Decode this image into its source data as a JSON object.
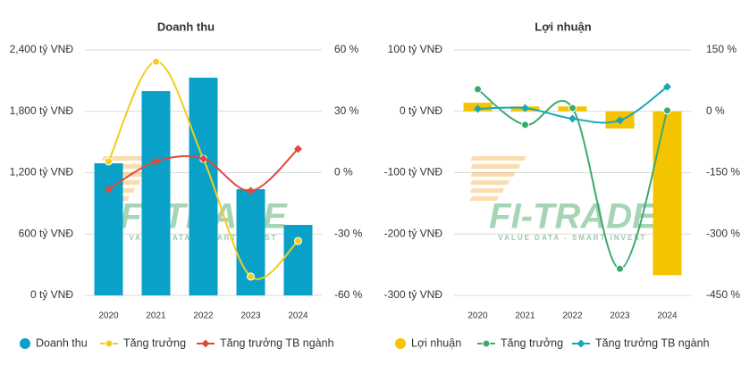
{
  "chart_data": [
    {
      "type": "combo",
      "title": "Doanh thu",
      "watermark": "FI-TRADE",
      "watermark_tagline": "VALUE DATA - SMART INVEST",
      "categories": [
        "2020",
        "2021",
        "2022",
        "2023",
        "2024"
      ],
      "ylim": [
        0,
        2400
      ],
      "yticks": [
        {
          "value": 0,
          "label": "0 tỷ VNĐ"
        },
        {
          "value": 600,
          "label": "600 tỷ VNĐ"
        },
        {
          "value": 1200,
          "label": "1,200 tỷ VNĐ"
        },
        {
          "value": 1800,
          "label": "1,800 tỷ VNĐ"
        },
        {
          "value": 2400,
          "label": "2,400 tỷ VNĐ"
        }
      ],
      "y2lim": [
        -60,
        60
      ],
      "y2ticks": [
        {
          "value": -60,
          "label": "-60 %"
        },
        {
          "value": -30,
          "label": "-30 %"
        },
        {
          "value": 0,
          "label": "0 %"
        },
        {
          "value": 30,
          "label": "30 %"
        },
        {
          "value": 60,
          "label": "60 %"
        }
      ],
      "grid": true,
      "series": [
        {
          "name": "Doanh thu",
          "type": "bar",
          "color": "#0aa1c9",
          "values": [
            1292,
            1998,
            2129,
            1039,
            689
          ]
        },
        {
          "name": "Tăng trưởng",
          "type": "line",
          "marker": "circle",
          "axis": "y2",
          "color": "#f3cc1c",
          "values": [
            5.5,
            54.3,
            6.8,
            -50.8,
            -33.4
          ]
        },
        {
          "name": "Tăng trưởng TB ngành",
          "type": "line",
          "marker": "diamond",
          "axis": "y2",
          "color": "#e04a3a",
          "values": [
            -8.1,
            5.5,
            6.8,
            -8.9,
            11.6
          ]
        }
      ]
    },
    {
      "type": "combo",
      "title": "Lợi nhuận",
      "watermark": "FI-TRADE",
      "watermark_tagline": "VALUE DATA - SMART INVEST",
      "categories": [
        "2020",
        "2021",
        "2022",
        "2023",
        "2024"
      ],
      "ylim": [
        -300,
        100
      ],
      "yticks": [
        {
          "value": -300,
          "label": "-300 tỷ VNĐ"
        },
        {
          "value": -200,
          "label": "-200 tỷ VNĐ"
        },
        {
          "value": -100,
          "label": "-100 tỷ VNĐ"
        },
        {
          "value": 0,
          "label": "0 tỷ VNĐ"
        },
        {
          "value": 100,
          "label": "100 tỷ VNĐ"
        }
      ],
      "y2lim": [
        -450,
        150
      ],
      "y2ticks": [
        {
          "value": -450,
          "label": "-450 %"
        },
        {
          "value": -300,
          "label": "-300 %"
        },
        {
          "value": -150,
          "label": "-150 %"
        },
        {
          "value": 0,
          "label": "0 %"
        },
        {
          "value": 150,
          "label": "150 %"
        }
      ],
      "grid": true,
      "series": [
        {
          "name": "Lợi nhuận",
          "type": "bar",
          "color": "#f5c400",
          "values": [
            14,
            8,
            8,
            -28,
            -267
          ]
        },
        {
          "name": "Tăng trưởng",
          "type": "line",
          "marker": "circle",
          "axis": "y2",
          "color": "#3caa6c",
          "values": [
            54,
            -33,
            8,
            -385,
            2
          ]
        },
        {
          "name": "Tăng trưởng TB ngành",
          "type": "line",
          "marker": "diamond",
          "axis": "y2",
          "color": "#1aa6b7",
          "values": [
            6,
            8,
            -18,
            -22,
            60
          ]
        }
      ]
    }
  ]
}
